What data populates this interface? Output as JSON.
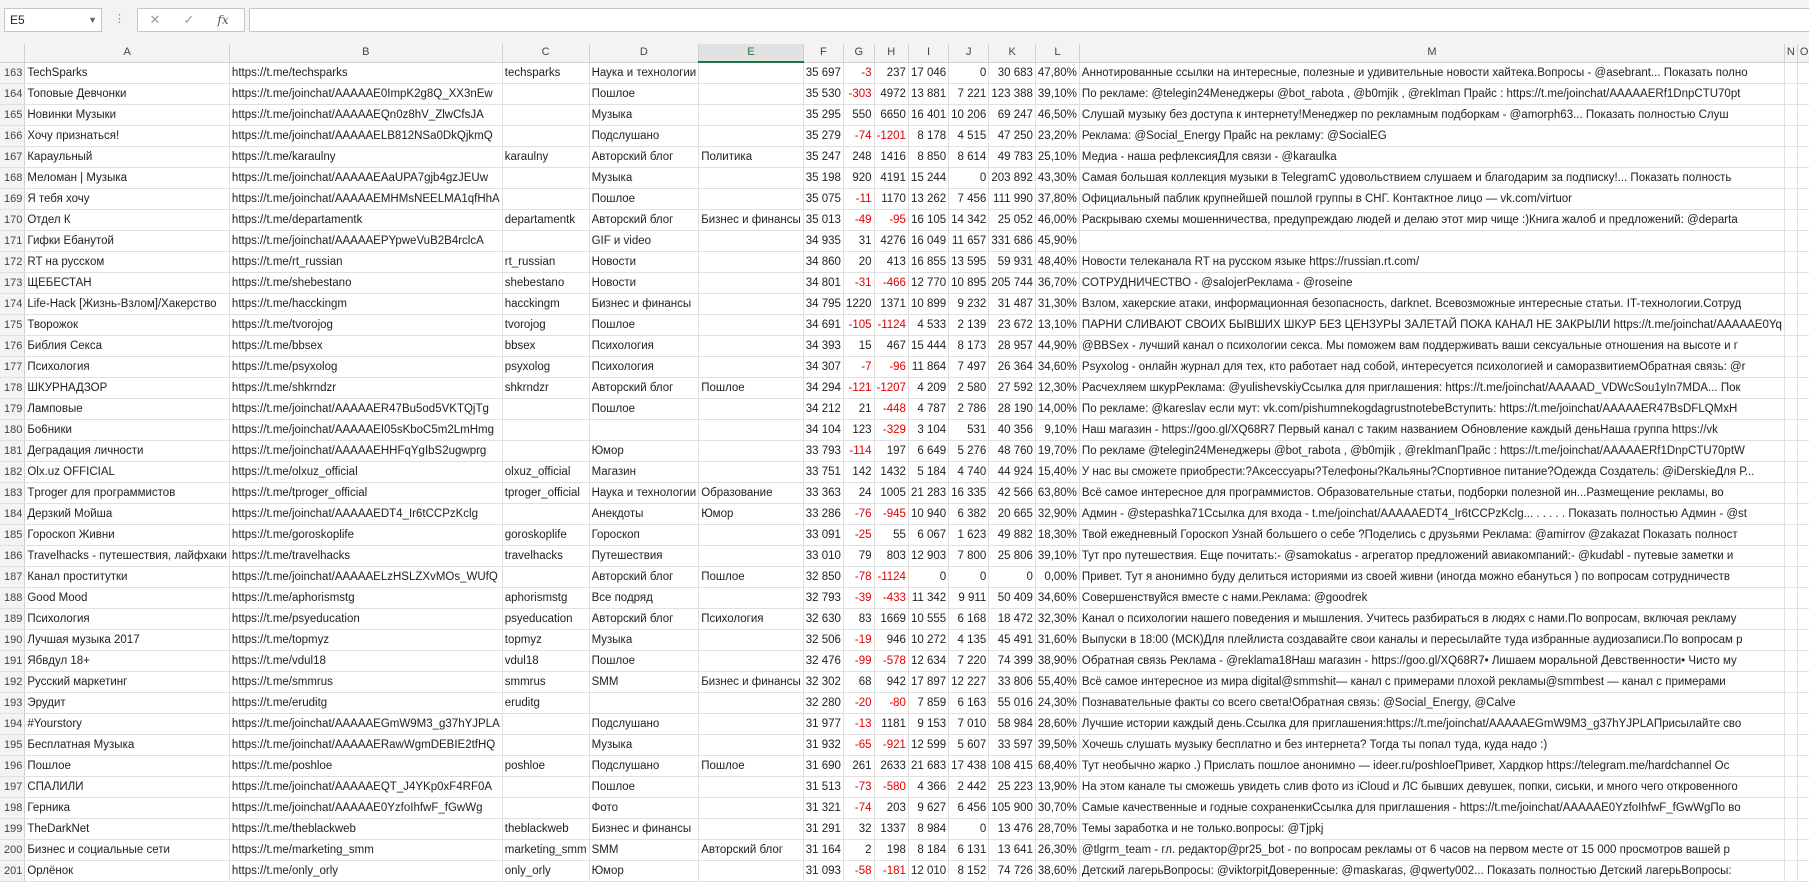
{
  "formula_bar": {
    "name_box": "E5",
    "formula": ""
  },
  "columns": [
    "A",
    "B",
    "C",
    "D",
    "E",
    "F",
    "G",
    "H",
    "I",
    "J",
    "K",
    "L",
    "M",
    "N",
    "O"
  ],
  "selected_column": "E",
  "rows": [
    {
      "n": "163",
      "c": [
        "TechSparks",
        "https://t.me/techsparks",
        "techsparks",
        "Наука и технологии",
        "",
        "35 697",
        "-3",
        "237",
        "17 046",
        "0",
        "30 683",
        "47,80%",
        "Аннотированные ссылки на интересные, полезные и удивительные новости хайтека.Вопросы - @asebrant... Показать полно",
        "",
        ""
      ]
    },
    {
      "n": "164",
      "c": [
        "Топовые Девчонки",
        "https://t.me/joinchat/AAAAAE0ImpK2g8Q_XX3nEw",
        "",
        "Пошлое",
        "",
        "35 530",
        "-303",
        "4972",
        "13 881",
        "7 221",
        "123 388",
        "39,10%",
        "По рекламе: @telegin24Менеджеры @bot_rabota , @b0mjik , @reklman Прайс : https://t.me/joinchat/AAAAAERf1DnpCTU70pt",
        "",
        ""
      ]
    },
    {
      "n": "165",
      "c": [
        "Новинки Музыки",
        "https://t.me/joinchat/AAAAAEQn0z8hV_ZlwCfsJA",
        "",
        "Музыка",
        "",
        "35 295",
        "550",
        "6650",
        "16 401",
        "10 206",
        "69 247",
        "46,50%",
        " Слушай музыку без доступа к интернету!Менеджер по рекламным подборкам - @amorph63... Показать полностью  Слуш",
        "",
        ""
      ]
    },
    {
      "n": "166",
      "c": [
        "Хочу признаться!",
        "https://t.me/joinchat/AAAAAELB812NSa0DkQjkmQ",
        "",
        "Подслушано",
        "",
        "35 279",
        "-74",
        "-1201",
        "8 178",
        "4 515",
        "47 250",
        "23,20%",
        "Реклама: @Social_Energy Прайс на рекламу: @SocialEG",
        "",
        ""
      ]
    },
    {
      "n": "167",
      "c": [
        "Караульный",
        "https://t.me/karaulny",
        "karaulny",
        "Авторский блог",
        "Политика",
        "35 247",
        "248",
        "1416",
        "8 850",
        "8 614",
        "49 783",
        "25,10%",
        "Медиа - наша рефлексияДля связи - @karaulka",
        "",
        ""
      ]
    },
    {
      "n": "168",
      "c": [
        "Меломан | Музыка",
        "https://t.me/joinchat/AAAAAEAaUPA7gjb4gzJEUw",
        "",
        "Музыка",
        "",
        "35 198",
        "920",
        "4191",
        "15 244",
        "0",
        "203 892",
        "43,30%",
        "Самая большая коллекция музыки в TelegramС удовольствием слушаем и благодарим за подписку!... Показать полность",
        "",
        ""
      ]
    },
    {
      "n": "169",
      "c": [
        "Я тебя хочу",
        "https://t.me/joinchat/AAAAAEMHMsNEELMA1qfHhA",
        "",
        "Пошлое",
        "",
        "35 075",
        "-11",
        "1170",
        "13 262",
        "7 456",
        "111 990",
        "37,80%",
        "Официальный паблик крупнейшей пошлой группы в СНГ. Контактное лицо — vk.com/virtuor",
        "",
        ""
      ]
    },
    {
      "n": "170",
      "c": [
        "Отдел К",
        "https://t.me/departamentk",
        "departamentk",
        "Авторский блог",
        "Бизнес и финансы",
        "35 013",
        "-49",
        "-95",
        "16 105",
        "14 342",
        "25 052",
        "46,00%",
        "Раскрываю схемы мошенничества, предупреждаю людей и делаю этот мир чище :)Книга жалоб и предложений: @departa",
        "",
        ""
      ]
    },
    {
      "n": "171",
      "c": [
        "Гифки Ебанутой",
        "https://t.me/joinchat/AAAAAEPYpweVuB2B4rclcA",
        "",
        "GIF и video",
        "",
        "34 935",
        "31",
        "4276",
        "16 049",
        "11 657",
        "331 686",
        "45,90%",
        "",
        "",
        ""
      ]
    },
    {
      "n": "172",
      "c": [
        "RT на русском",
        "https://t.me/rt_russian",
        "rt_russian",
        "Новости",
        "",
        "34 860",
        "20",
        "413",
        "16 855",
        "13 595",
        "59 931",
        "48,40%",
        "Новости телеканала RT на русском языке https://russian.rt.com/",
        "",
        ""
      ]
    },
    {
      "n": "173",
      "c": [
        "ЩЕБЕСТАН",
        "https://t.me/shebestano",
        "shebestano",
        "Новости",
        "",
        "34 801",
        "-31",
        "-466",
        "12 770",
        "10 895",
        "205 744",
        "36,70%",
        "СОТРУДНИЧЕСТВО - @salojerРеклама - @roseine",
        "",
        ""
      ]
    },
    {
      "n": "174",
      "c": [
        "Life-Hack [Жизнь-Взлом]/Хакерство",
        "https://t.me/hacckingm",
        "hacckingm",
        "Бизнес и финансы",
        "",
        "34 795",
        "1220",
        "1371",
        "10 899",
        "9 232",
        "31 487",
        "31,30%",
        "Взлом, хакерские атаки, информационная безопасность, darknet. Всевозможные интересные статьи. IT-технологии.Сотруд",
        "",
        ""
      ]
    },
    {
      "n": "175",
      "c": [
        "Творожок",
        "https://t.me/tvorojog",
        "tvorojog",
        "Пошлое",
        "",
        "34 691",
        "-105",
        "-1124",
        "4 533",
        "2 139",
        "23 672",
        "13,10%",
        "ПАРНИ СЛИВАЮТ СВОИХ БЫВШИХ ШКУР БЕЗ ЦЕНЗУРЫ  ЗАЛЕТАЙ ПОКА КАНАЛ НЕ ЗАКРЫЛИ https://t.me/joinchat/AAAAAE0Yq",
        "",
        ""
      ]
    },
    {
      "n": "176",
      "c": [
        "Библия Секса",
        "https://t.me/bbsex",
        "bbsex",
        "Психология",
        "",
        "34 393",
        "15",
        "467",
        "15 444",
        "8 173",
        "28 957",
        "44,90%",
        "@BBSex - лучший канал о психологии секса. Мы поможем вам поддерживать ваши сексуальные отношения на высоте и г",
        "",
        ""
      ]
    },
    {
      "n": "177",
      "c": [
        "Психология",
        "https://t.me/psyxolog",
        "psyxolog",
        "Психология",
        "",
        "34 307",
        "-7",
        "-96",
        "11 864",
        "7 497",
        "26 364",
        "34,60%",
        "Psyxolog - онлайн журнал для тех, кто работает над собой, интересуется психологией и саморазвитиемОбратная связь: @r",
        "",
        ""
      ]
    },
    {
      "n": "178",
      "c": [
        "ШКУРНАДЗОР",
        "https://t.me/shkrndzr",
        "shkrndzr",
        "Авторский блог",
        "Пошлое",
        "34 294",
        "-121",
        "-1207",
        "4 209",
        "2 580",
        "27 592",
        "12,30%",
        "Расчехляем шкурРеклама: @yulishevskiyСсылка для приглашения: https://t.me/joinchat/AAAAAD_VDWcSou1yIn7MDA... Пок",
        "",
        ""
      ]
    },
    {
      "n": "179",
      "c": [
        "Ламповые",
        "https://t.me/joinchat/AAAAAER47Bu5od5VKTQjTg",
        "",
        "Пошлое",
        "",
        "34 212",
        "21",
        "-448",
        "4 787",
        "2 786",
        "28 190",
        "14,00%",
        "По рекламе: @kareslav если мут: vk.com/pishumnekogdagrustnotebeВступить: https://t.me/joinchat/AAAAAER47BsDFLQMxH",
        "",
        ""
      ]
    },
    {
      "n": "180",
      "c": [
        "Бо6ники",
        "https://t.me/joinchat/AAAAAEI05sKboC5m2LmHmg",
        "",
        "",
        "",
        "34 104",
        "123",
        "-329",
        "3 104",
        "531",
        "40 356",
        "9,10%",
        "Наш магазин - https://goo.gl/XQ68R7 Первый канал с таким названием Обновление каждый деньНаша группа https://vk",
        "",
        ""
      ]
    },
    {
      "n": "181",
      "c": [
        "Деградация личности",
        "https://t.me/joinchat/AAAAAEHHFqYgIbS2ugwprg",
        "",
        "Юмор",
        "",
        "33 793",
        "-114",
        "197",
        "6 649",
        "5 276",
        "48 760",
        "19,70%",
        "По рекламе @telegin24Менеджеры @bot_rabota , @b0mjik , @reklmanПрайс : https://t.me/joinchat/AAAAAERf1DnpCTU70ptW",
        "",
        ""
      ]
    },
    {
      "n": "182",
      "c": [
        "Olx.uz OFFICIAL",
        "https://t.me/olxuz_official",
        "olxuz_official",
        "Магазин",
        "",
        "33 751",
        "142",
        "1432",
        "5 184",
        "4 740",
        "44 924",
        "15,40%",
        "У нас вы сможете приобрести:?Аксессуары?Телефоны?Кальяны?Спортивное питание?Одежда Создатель: @iDerskieДля Р...",
        "",
        ""
      ]
    },
    {
      "n": "183",
      "c": [
        "Tproger для программистов",
        "https://t.me/tproger_official",
        "tproger_official",
        "Наука и технологии",
        "Образование",
        "33 363",
        "24",
        "1005",
        "21 283",
        "16 335",
        "42 566",
        "63,80%",
        "Всё самое интересное для программистов. Образовательные статьи, подборки полезной ин...Размещение рекламы, во",
        "",
        ""
      ]
    },
    {
      "n": "184",
      "c": [
        "Дерзкий Мойша",
        "https://t.me/joinchat/AAAAAEDT4_Ir6tCCPzKclg",
        "",
        "Анекдоты",
        "Юмор",
        "33 286",
        "-76",
        "-945",
        "10 940",
        "6 382",
        "20 665",
        "32,90%",
        "Админ - @stepashka71Ссылка для входа - t.me/joinchat/AAAAAEDT4_Ir6tCCPzKclg... . . . . . Показать полностью Админ - @st",
        "",
        ""
      ]
    },
    {
      "n": "185",
      "c": [
        "Гороскоп Живни",
        "https://t.me/goroskoplife",
        "goroskoplife",
        "Гороскоп",
        "",
        "33 091",
        "-25",
        "55",
        "6 067",
        "1 623",
        "49 882",
        "18,30%",
        "Твой ежедневный Гороскоп  Узнай большего о себе ?Поделись с друзьями Реклама: @amirrov @zakazat Показать полност",
        "",
        ""
      ]
    },
    {
      "n": "186",
      "c": [
        "Travelhacks - путешествия, лайфхаки",
        "https://t.me/travelhacks",
        "travelhacks",
        "Путешествия",
        "",
        "33 010",
        "79",
        "803",
        "12 903",
        "7 800",
        "25 806",
        "39,10%",
        "Тут про путешествия. Еще почитать:- @samokatus - агрегатор предложений авиакомпаний:- @kudabl - путевые заметки и",
        "",
        ""
      ]
    },
    {
      "n": "187",
      "c": [
        "Канал проститутки",
        "https://t.me/joinchat/AAAAAELzHSLZXvMOs_WUfQ",
        "",
        "Авторский блог",
        "Пошлое",
        "32 850",
        "-78",
        "-1124",
        "0",
        "0",
        "0",
        "0,00%",
        "Привет. Тут я анонимно буду делиться историями из своей живни (иногда можно ебануться ) по вопросам сотрудничеств",
        "",
        ""
      ]
    },
    {
      "n": "188",
      "c": [
        "Good Mood",
        "https://t.me/aphorismstg",
        "aphorismstg",
        "Все подряд",
        "",
        "32 793",
        "-39",
        "-433",
        "11 342",
        "9 911",
        "50 409",
        "34,60%",
        "Совершенствуйся вместе с нами.Реклама: @goodrek",
        "",
        ""
      ]
    },
    {
      "n": "189",
      "c": [
        "Психология",
        "https://t.me/psyeducation",
        "psyeducation",
        "Авторский блог",
        "Психология",
        "32 630",
        "83",
        "1669",
        "10 555",
        "6 168",
        "18 472",
        "32,30%",
        "Канал о психологии нашего поведения и мышления. Учитесь разбираться в людях с нами.По вопросам, включая рекламу",
        "",
        ""
      ]
    },
    {
      "n": "190",
      "c": [
        "Лучшая музыка 2017",
        "https://t.me/topmyz",
        "topmyz",
        "Музыка",
        "",
        "32 506",
        "-19",
        "946",
        "10 272",
        "4 135",
        "45 491",
        "31,60%",
        "Выпуски в 18:00 (МСК)Для плейлиста создавайте свои каналы и пересылайте туда избранные аудиозаписи.По вопросам р",
        "",
        ""
      ]
    },
    {
      "n": "191",
      "c": [
        "Ябвдул 18+",
        "https://t.me/vdul18",
        "vdul18",
        "Пошлое",
        "",
        "32 476",
        "-99",
        "-578",
        "12 634",
        "7 220",
        "74 399",
        "38,90%",
        " Обратная связь Реклама - @reklama18Наш магазин - https://goo.gl/XQ68R7• Лишаем моральной Девственности• Чисто му",
        "",
        ""
      ]
    },
    {
      "n": "192",
      "c": [
        "Русский маркетинг",
        "https://t.me/smmrus",
        "smmrus",
        "SMM",
        "Бизнес и финансы",
        "32 302",
        "68",
        "942",
        "17 897",
        "12 227",
        "33 806",
        "55,40%",
        "Всё самое интересное из мира digital@smmshit— канал с примерами плохой рекламы@smmbest — канал с примерами",
        "",
        ""
      ]
    },
    {
      "n": "193",
      "c": [
        "Эрудит",
        "https://t.me/eruditg",
        "eruditg",
        "",
        "",
        "32 280",
        "-20",
        "-80",
        "7 859",
        "6 163",
        "55 016",
        "24,30%",
        "Познавательные факты со всего света!Обратная связь: @Social_Energy, @Calve",
        "",
        ""
      ]
    },
    {
      "n": "194",
      "c": [
        "#Yourstory",
        "https://t.me/joinchat/AAAAAEGmW9M3_g37hYJPLA",
        "",
        "Подслушано",
        "",
        "31 977",
        "-13",
        "1181",
        "9 153",
        "7 010",
        "58 984",
        "28,60%",
        "Лучшие истории каждый день.Ссылка для приглашения:https://t.me/joinchat/AAAAAEGmW9M3_g37hYJPLAПрисылайте сво",
        "",
        ""
      ]
    },
    {
      "n": "195",
      "c": [
        "Бесплатная Музыка",
        "https://t.me/joinchat/AAAAAERawWgmDEBIE2tfHQ",
        "",
        "Музыка",
        "",
        "31 932",
        "-65",
        "-921",
        "12 599",
        "5 607",
        "33 597",
        "39,50%",
        "Хочешь слушать музыку бесплатно и без интернета? Тогда ты попал туда, куда надо :)",
        "",
        ""
      ]
    },
    {
      "n": "196",
      "c": [
        "Пошлое",
        "https://t.me/poshloe",
        "poshloe",
        "Подслушано",
        "Пошлое",
        "31 690",
        "261",
        "2633",
        "21 683",
        "17 438",
        "108 415",
        "68,40%",
        "Тут необычно жарко .) Прислать пошлое анонимно — ideer.ru/poshloeПривет, Хардкор https://telegram.me/hardchannel Ос",
        "",
        ""
      ]
    },
    {
      "n": "197",
      "c": [
        "СПАЛИЛИ",
        "https://t.me/joinchat/AAAAAEQT_J4YKp0xF4RF0A",
        "",
        "Пошлое",
        "",
        "31 513",
        "-73",
        "-580",
        "4 366",
        "2 442",
        "25 223",
        "13,90%",
        "На этом канале ты сможешь увидеть слив фото из iCloud и ЛС бывших девушек, попки, сиськи, и много чего откровенного",
        "",
        ""
      ]
    },
    {
      "n": "198",
      "c": [
        "Герника",
        "https://t.me/joinchat/AAAAAE0YzfoIhfwF_fGwWg",
        "",
        "Фото",
        "",
        "31 321",
        "-74",
        "203",
        "9 627",
        "6 456",
        "105 900",
        "30,70%",
        "Самые качественные и годные сохраненкиСсылка для приглашения - https://t.me/joinchat/AAAAAE0YzfoIhfwF_fGwWgПо во",
        "",
        ""
      ]
    },
    {
      "n": "199",
      "c": [
        "TheDarkNet",
        "https://t.me/theblackweb",
        "theblackweb",
        "Бизнес и финансы",
        "",
        "31 291",
        "32",
        "1337",
        "8 984",
        "0",
        "13 476",
        "28,70%",
        "Темы заработка и не только.вопросы: @Tjpkj",
        "",
        ""
      ]
    },
    {
      "n": "200",
      "c": [
        "Бизнес и социальные сети",
        "https://t.me/marketing_smm",
        "marketing_smm",
        "SMM",
        "Авторский блог",
        "31 164",
        "2",
        "198",
        "8 184",
        "6 131",
        "13 641",
        "26,30%",
        "@tlgrm_team - гл. редактор@pr25_bot - по вопросам рекламы от 6 часов на первом месте от 15 000 просмотров вашей р",
        "",
        ""
      ]
    },
    {
      "n": "201",
      "c": [
        "Орлёнок",
        "https://t.me/only_orly",
        "only_orly",
        "Юмор",
        "",
        "31 093",
        "-58",
        "-181",
        "12 010",
        "8 152",
        "74 726",
        "38,60%",
        "Детский лагерьВопросы: @viktorpitДоверенные: @maskaras, @qwerty002... Показать полностью Детский лагерьВопросы:",
        "",
        ""
      ]
    }
  ]
}
